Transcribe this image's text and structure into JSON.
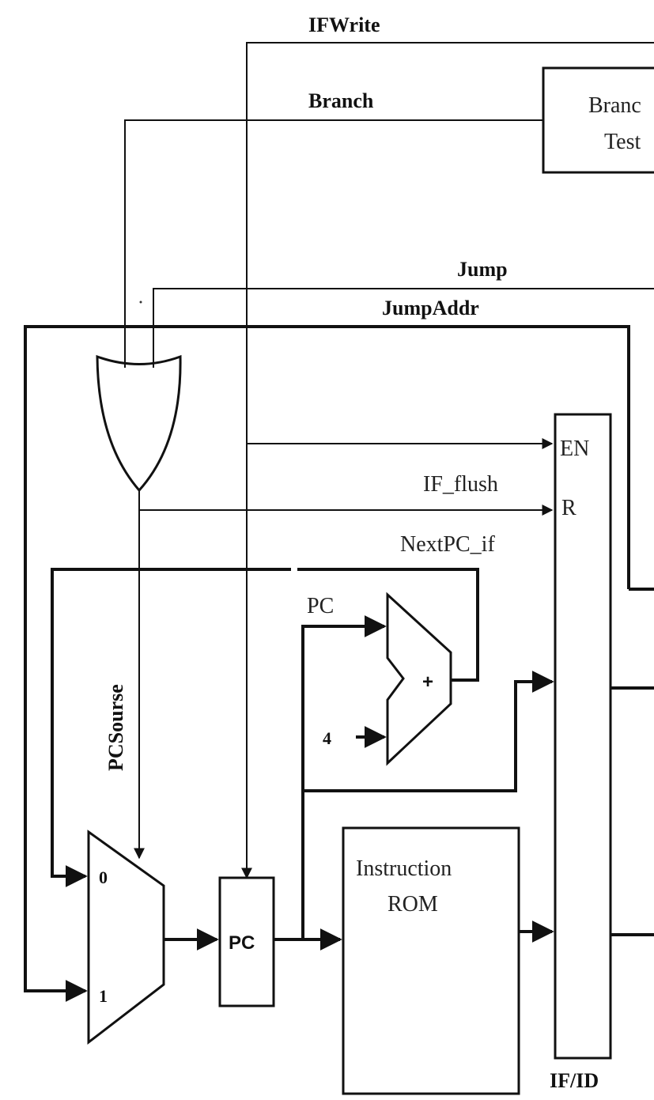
{
  "signals": {
    "if_write": "IFWrite",
    "branch": "Branch",
    "jump": "Jump",
    "jump_addr": "JumpAddr",
    "pc_source": "PCSourse",
    "if_flush": "IF_flush",
    "next_pc_if": "NextPC_if",
    "pc": "PC",
    "four": "4",
    "plus": "+"
  },
  "blocks": {
    "branch_test_line1": "Branc",
    "branch_test_line2": "Test",
    "instruction_rom_line1": "Instruction",
    "instruction_rom_line2": "ROM",
    "pc_register": "PC",
    "if_id_label": "IF/ID",
    "if_id_en": "EN",
    "if_id_r": "R",
    "mux_in0": "0",
    "mux_in1": "1"
  }
}
